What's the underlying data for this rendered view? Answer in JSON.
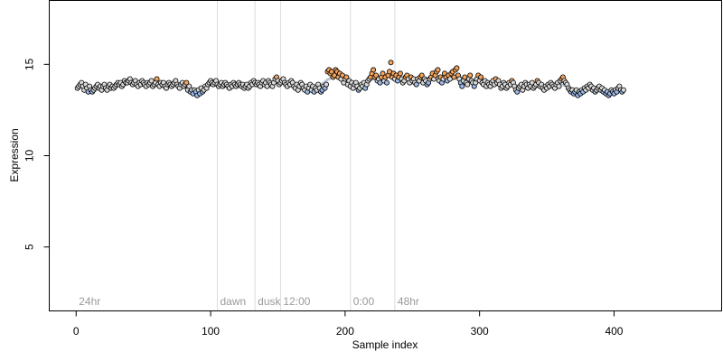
{
  "chart_data": {
    "type": "scatter",
    "title": "",
    "xlabel": "Sample index",
    "ylabel": "Expression",
    "xlim": [
      -20,
      480
    ],
    "ylim": [
      1.5,
      18.5
    ],
    "x_ticks": [
      0,
      100,
      200,
      300,
      400
    ],
    "y_ticks": [
      5,
      10,
      15
    ],
    "grid": false,
    "legend": "none",
    "colors": {
      "low": "#9bb8e8",
      "mid": "#d9d9d9",
      "high": "#f2a35e",
      "point_stroke": "#000000",
      "smooth_line": "#a9b4c8",
      "boundary_line": "#dcdcdc",
      "region_label": "#9a9a9a"
    },
    "regions": [
      {
        "label": "24hr",
        "x_start": 0
      },
      {
        "label": "dawn",
        "x_start": 105
      },
      {
        "label": "dusk",
        "x_start": 133
      },
      {
        "label": "12:00",
        "x_start": 152
      },
      {
        "label": "0:00",
        "x_start": 204
      },
      {
        "label": "48hr",
        "x_start": 237
      }
    ],
    "boundaries": [
      105,
      133,
      152,
      204,
      237
    ],
    "series": [
      {
        "x_start": 1,
        "values": [
          13.7,
          13.8,
          13.9,
          14.0,
          13.8,
          13.6,
          13.9,
          13.7,
          13.5,
          13.8,
          13.6,
          13.5,
          13.6,
          13.7,
          13.8,
          13.9,
          13.7,
          13.8,
          13.6,
          13.8,
          13.9,
          13.7,
          13.6,
          13.8,
          13.9,
          13.7,
          13.8,
          13.7,
          13.8,
          13.9,
          14.0,
          13.9,
          14.0,
          13.8,
          13.9,
          14.1,
          14.0,
          14.0,
          14.1,
          14.2,
          14.0,
          13.9,
          14.0,
          14.1,
          13.9,
          13.8,
          14.0,
          13.9,
          14.1,
          14.0,
          13.9,
          13.8,
          14.0,
          13.9,
          14.0,
          14.1,
          13.8,
          13.9,
          14.0,
          14.2,
          13.9,
          13.8,
          14.0,
          13.9,
          14.0,
          13.8,
          13.7,
          13.9,
          14.0,
          13.9,
          13.8,
          13.9,
          14.0,
          14.1,
          13.9,
          13.8,
          13.7,
          13.9,
          14.0,
          13.8,
          13.9,
          14.0,
          13.6,
          13.8,
          13.5,
          13.6,
          13.4,
          13.6,
          13.5,
          13.3,
          13.6,
          13.4,
          13.7,
          13.5,
          13.6,
          13.8,
          13.7,
          13.9,
          14.0,
          14.1,
          14.0,
          13.9,
          14.0,
          14.1,
          13.9,
          13.8,
          13.9,
          14.0,
          13.8,
          13.9,
          14.0,
          13.9,
          13.8,
          13.7,
          13.9,
          13.8,
          14.0,
          13.9,
          13.8,
          13.9,
          14.0,
          13.9,
          13.8,
          13.9,
          13.7,
          13.8,
          13.9,
          13.7,
          13.8,
          14.0,
          13.9,
          14.1,
          14.0,
          13.9,
          14.0,
          13.9,
          13.8,
          14.0,
          14.1,
          13.9,
          14.0,
          13.8,
          14.1,
          14.0,
          13.9,
          13.8,
          14.0,
          14.2,
          14.3,
          14.1,
          13.9,
          14.0,
          14.1,
          14.2,
          14.0,
          13.9,
          13.8,
          14.0,
          13.9,
          14.1,
          14.0,
          13.8,
          13.7,
          13.9,
          13.6,
          13.8,
          14.0,
          13.9,
          13.7,
          13.6,
          13.8,
          13.5,
          13.7,
          13.9,
          13.6,
          13.8,
          13.5,
          13.7,
          13.6,
          13.9,
          13.7,
          13.5,
          13.6,
          13.8,
          13.7,
          13.9,
          14.6,
          14.7,
          14.5,
          14.6,
          14.3,
          14.4,
          14.7,
          14.6,
          14.3,
          14.5,
          14.2,
          14.4,
          14.0,
          14.2,
          14.3,
          13.9,
          14.1,
          13.8,
          14.0,
          13.7,
          13.9,
          14.0,
          13.8,
          13.6,
          13.7,
          13.9,
          13.8,
          14.0,
          13.7,
          13.9,
          14.1,
          14.2,
          14.3,
          14.5,
          14.7,
          14.3,
          14.4,
          14.1,
          14.2,
          14.0,
          14.3,
          14.5,
          14.1,
          14.3,
          14.0,
          14.4,
          14.6,
          15.1,
          14.3,
          14.5,
          14.2,
          14.4,
          14.1,
          14.3,
          14.5,
          14.2,
          14.0,
          14.1,
          14.3,
          14.4,
          14.2,
          14.0,
          14.3,
          14.1,
          14.2,
          14.0,
          13.9,
          14.2,
          14.1,
          14.3,
          14.4,
          14.0,
          14.2,
          14.1,
          13.9,
          14.0,
          14.2,
          14.3,
          14.5,
          14.2,
          14.4,
          14.6,
          14.7,
          14.1,
          14.3,
          14.0,
          14.2,
          14.5,
          14.3,
          14.1,
          14.4,
          14.2,
          14.5,
          14.6,
          14.3,
          14.7,
          14.8,
          14.4,
          14.2,
          14.0,
          13.8,
          14.1,
          14.3,
          14.0,
          13.9,
          14.2,
          14.4,
          14.1,
          14.0,
          13.8,
          14.0,
          14.2,
          14.4,
          14.1,
          14.3,
          14.0,
          13.9,
          14.1,
          13.8,
          14.0,
          13.9,
          13.8,
          14.0,
          14.1,
          13.9,
          14.2,
          14.0,
          14.1,
          13.9,
          13.7,
          13.8,
          14.0,
          13.9,
          13.7,
          13.8,
          14.0,
          13.9,
          14.1,
          14.0,
          13.8,
          13.6,
          13.5,
          13.7,
          13.8,
          13.9,
          13.6,
          13.8,
          14.0,
          13.9,
          13.7,
          13.9,
          13.8,
          14.0,
          13.7,
          13.8,
          13.9,
          14.1,
          14.0,
          13.8,
          13.9,
          13.7,
          13.6,
          13.8,
          13.7,
          13.9,
          13.8,
          14.0,
          13.9,
          13.8,
          13.7,
          13.9,
          14.0,
          13.8,
          14.1,
          14.2,
          14.3,
          14.1,
          14.0,
          13.9,
          13.7,
          13.6,
          13.5,
          13.6,
          13.4,
          13.5,
          13.6,
          13.3,
          13.5,
          13.4,
          13.6,
          13.5,
          13.7,
          13.6,
          13.8,
          13.7,
          13.9,
          13.8,
          13.6,
          13.7,
          13.5,
          13.6,
          13.7,
          13.8,
          13.6,
          13.7,
          13.5,
          13.6,
          13.4,
          13.5,
          13.3,
          13.4,
          13.6,
          13.5,
          13.4,
          13.6,
          13.5,
          13.7,
          13.8,
          13.6,
          13.5,
          13.6
        ]
      }
    ]
  }
}
